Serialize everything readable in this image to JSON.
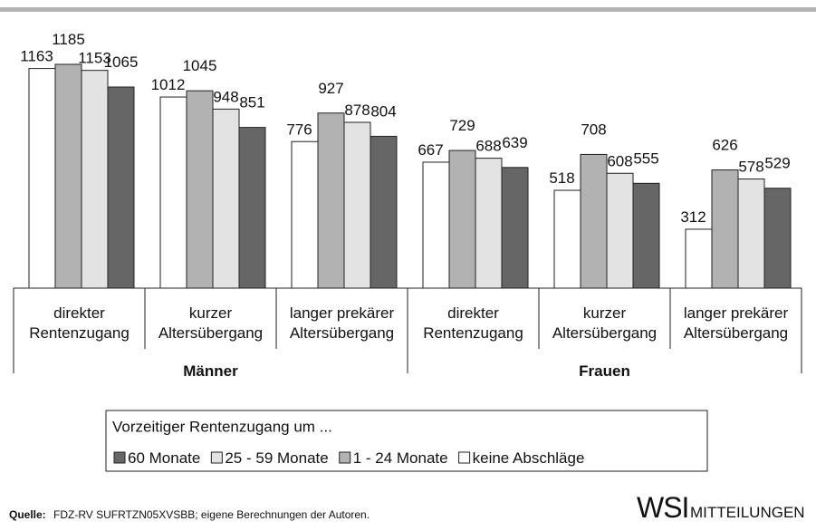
{
  "chart_data": {
    "type": "bar",
    "categories": [
      [
        "direkter",
        "Rentenzugang"
      ],
      [
        "kurzer",
        "Altersübergang"
      ],
      [
        "langer prekärer",
        "Altersübergang"
      ],
      [
        "direkter",
        "Rentenzugang"
      ],
      [
        "kurzer",
        "Altersübergang"
      ],
      [
        "langer prekärer",
        "Altersübergang"
      ]
    ],
    "groups": [
      "Männer",
      "Frauen"
    ],
    "legend_title": "Vorzeitiger Rentenzugang um ...",
    "series": [
      {
        "name": "keine Abschläge",
        "color": "#ffffff",
        "values": [
          1163,
          1012,
          776,
          667,
          518,
          312
        ]
      },
      {
        "name": "1 - 24 Monate",
        "color": "#b2b2b2",
        "values": [
          1185,
          1045,
          927,
          729,
          708,
          626
        ]
      },
      {
        "name": "25 - 59 Monate",
        "color": "#e3e3e3",
        "values": [
          1153,
          948,
          878,
          688,
          608,
          578
        ]
      },
      {
        "name": "60 Monate",
        "color": "#666666",
        "values": [
          1065,
          851,
          804,
          639,
          555,
          529
        ]
      }
    ]
  },
  "source": {
    "label": "Quelle:",
    "text": "FDZ-RV SUFRTZN05XVSBB; eigene Berechnungen der Autoren."
  },
  "logo": {
    "main": "WSI",
    "sub": "MITTEILUNGEN"
  }
}
